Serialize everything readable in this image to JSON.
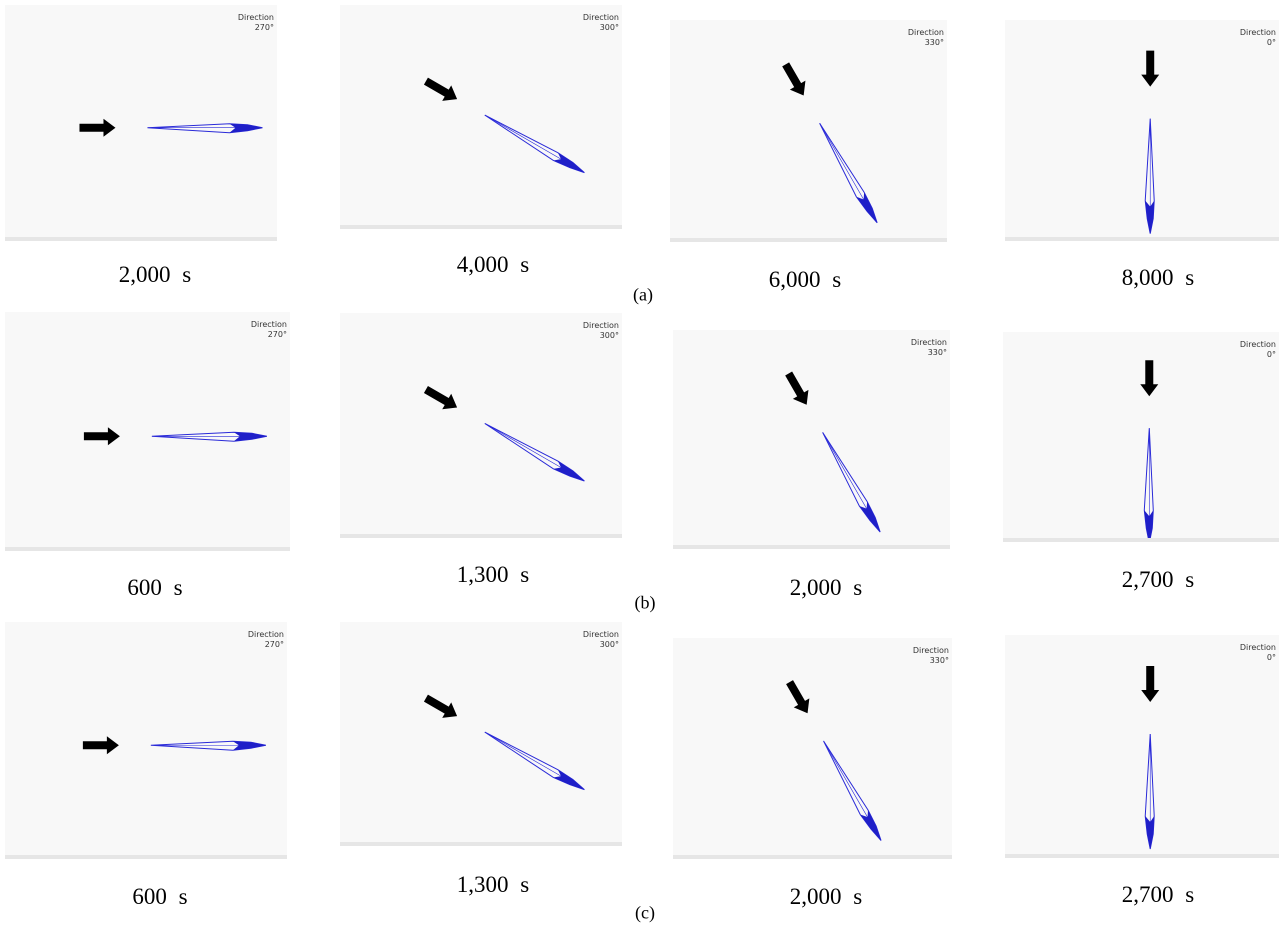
{
  "rows": [
    {
      "label": "(a)",
      "panels": [
        {
          "direction_title": "Direction",
          "direction": "270°",
          "time": "2,000 s"
        },
        {
          "direction_title": "Direction",
          "direction": "300°",
          "time": "4,000 s"
        },
        {
          "direction_title": "Direction",
          "direction": "330°",
          "time": "6,000 s"
        },
        {
          "direction_title": "Direction",
          "direction": "0°",
          "time": "8,000 s"
        }
      ]
    },
    {
      "label": "(b)",
      "panels": [
        {
          "direction_title": "Direction",
          "direction": "270°",
          "time": "600 s"
        },
        {
          "direction_title": "Direction",
          "direction": "300°",
          "time": "1,300 s"
        },
        {
          "direction_title": "Direction",
          "direction": "330°",
          "time": "2,000 s"
        },
        {
          "direction_title": "Direction",
          "direction": "0°",
          "time": "2,700 s"
        }
      ]
    },
    {
      "label": "(c)",
      "panels": [
        {
          "direction_title": "Direction",
          "direction": "270°",
          "time": "600 s"
        },
        {
          "direction_title": "Direction",
          "direction": "300°",
          "time": "1,300 s"
        },
        {
          "direction_title": "Direction",
          "direction": "330°",
          "time": "2,000 s"
        },
        {
          "direction_title": "Direction",
          "direction": "0°",
          "time": "2,700 s"
        }
      ]
    }
  ]
}
